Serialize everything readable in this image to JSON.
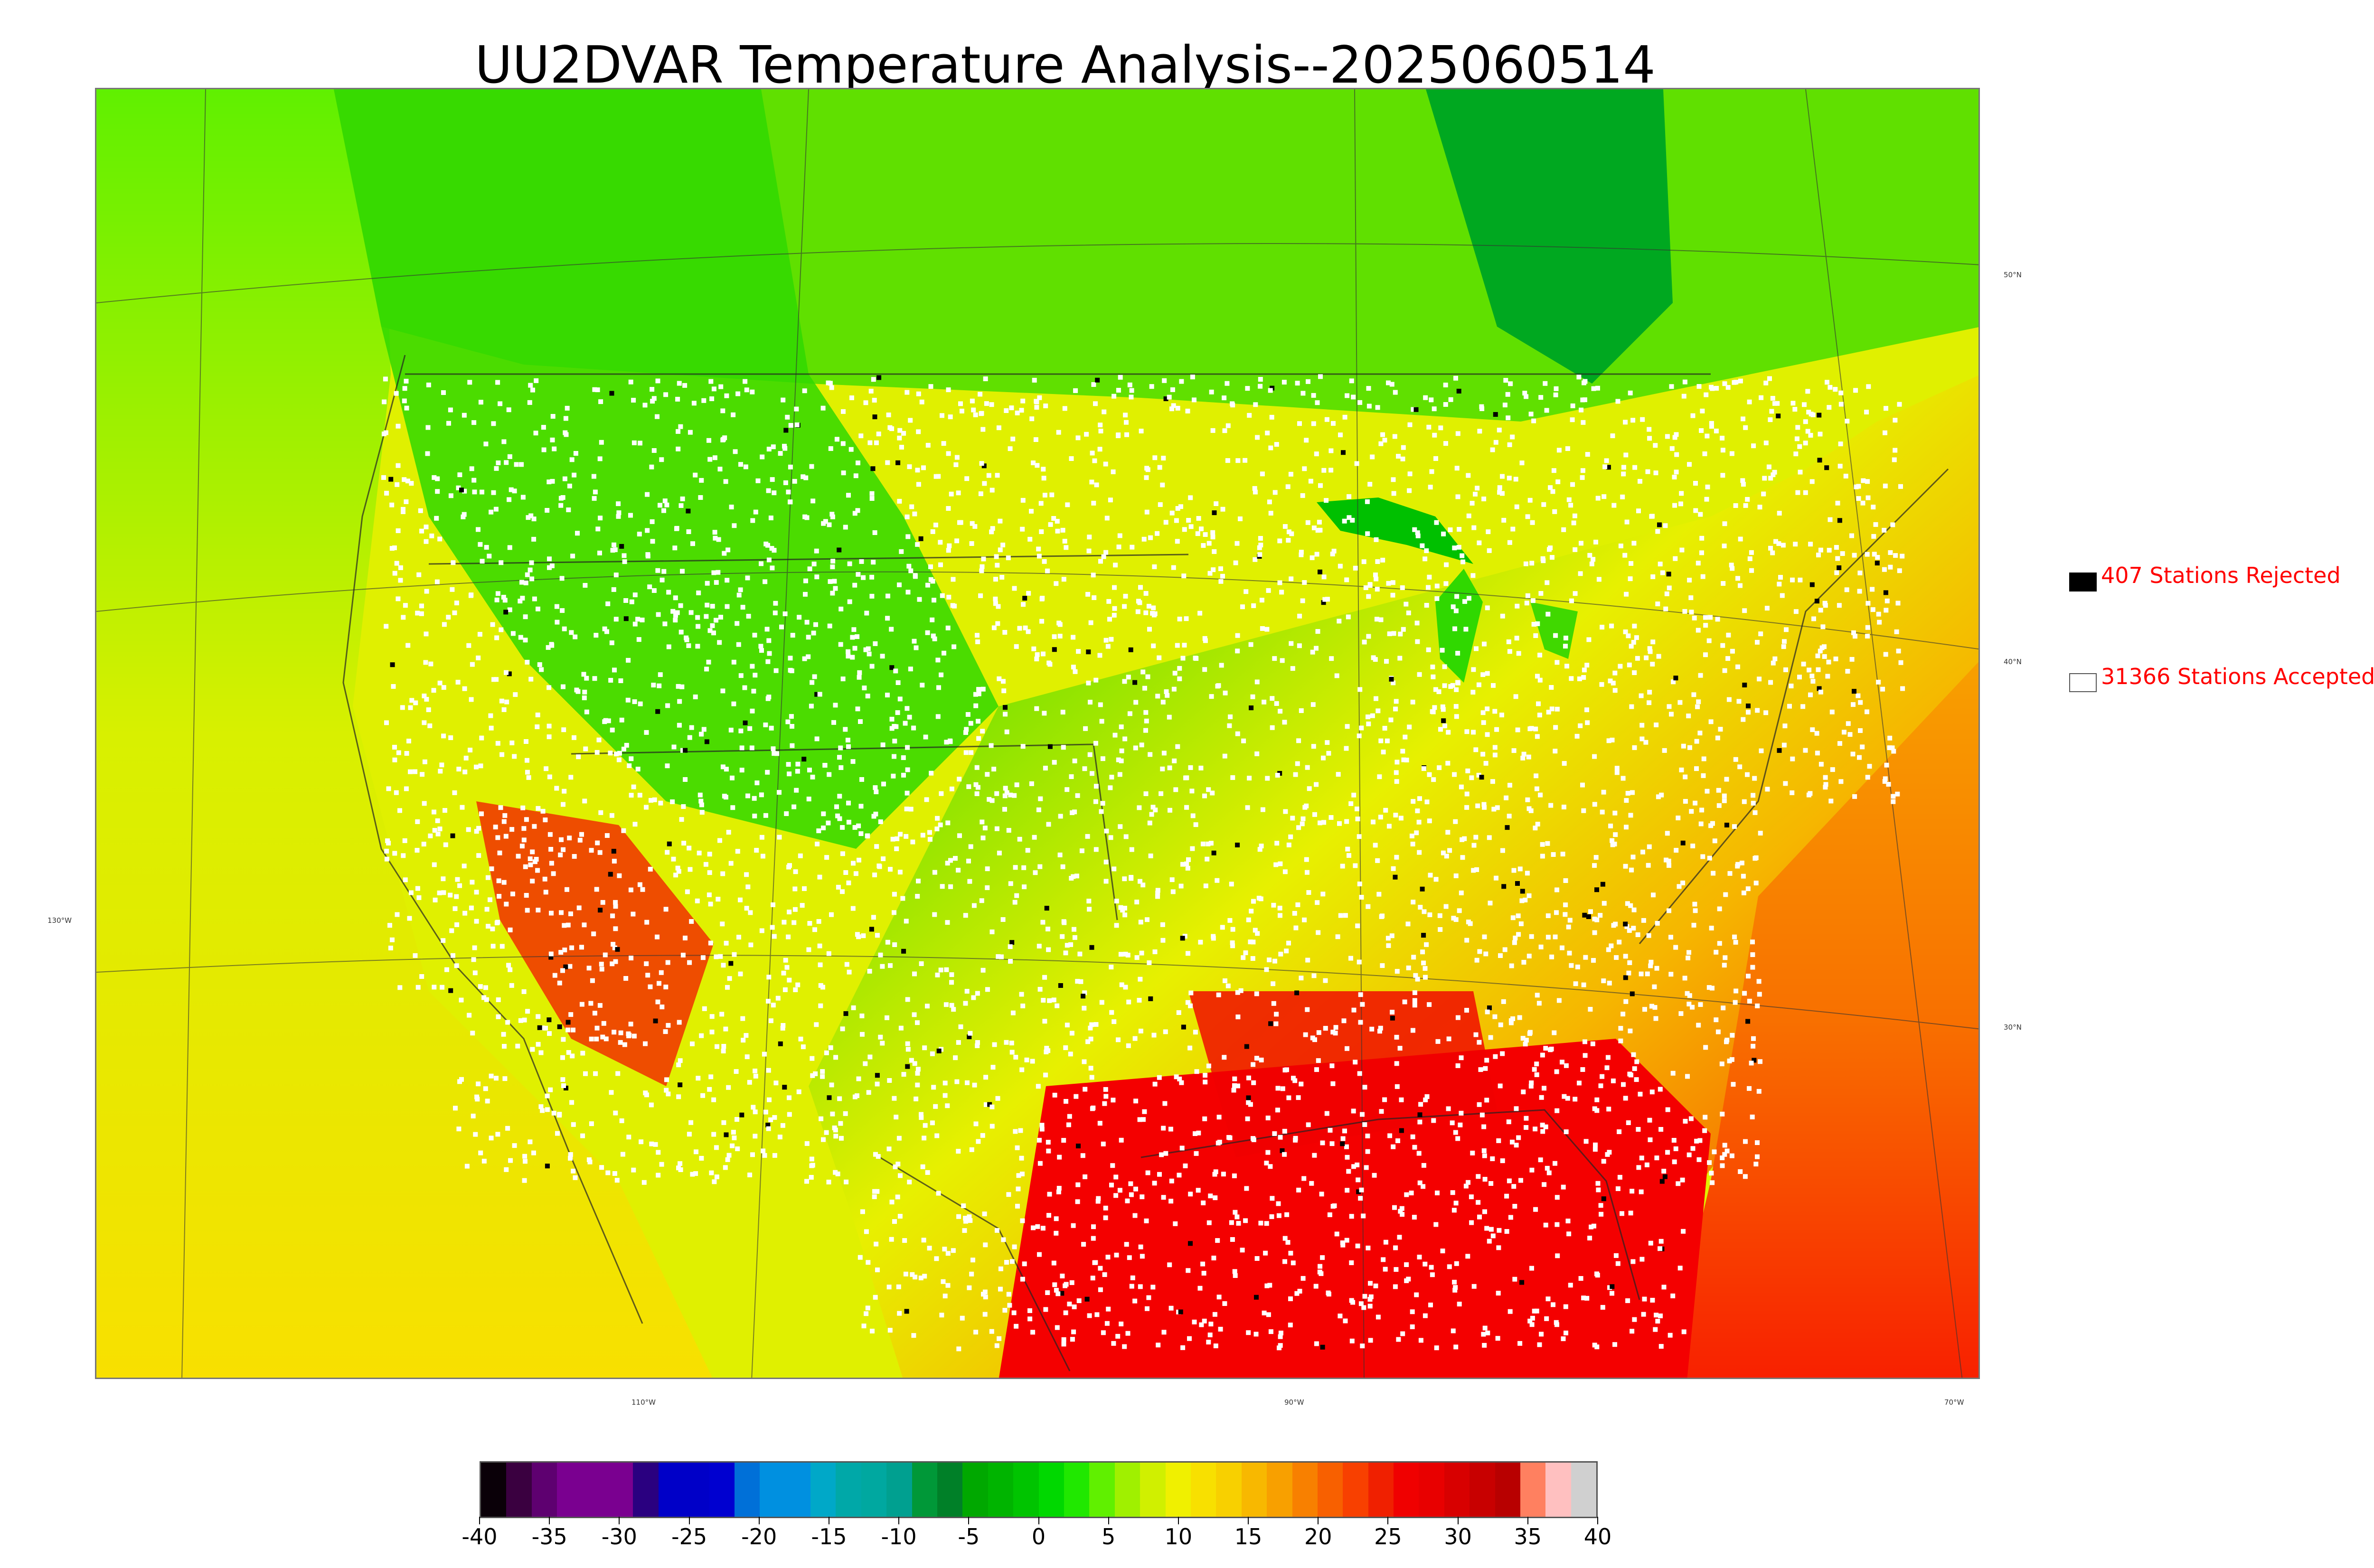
{
  "title": "UU2DVAR Temperature Analysis--2025060514",
  "map": {
    "lat_labels": [
      "50°N",
      "40°N",
      "30°N"
    ],
    "lon_labels": [
      "130°W",
      "110°W",
      "90°W",
      "70°W"
    ]
  },
  "legend": {
    "rejected": {
      "label": "407 Stations Rejected",
      "swatch_color": "#000000"
    },
    "accepted": {
      "label": "31366 Stations Accepted",
      "swatch_color": "#ffffff"
    }
  },
  "colorbar": {
    "ticks": [
      "-40",
      "-35",
      "-30",
      "-25",
      "-20",
      "-15",
      "-10",
      "-5",
      "0",
      "5",
      "10",
      "15",
      "20",
      "25",
      "30",
      "35",
      "40"
    ],
    "colors": [
      "#0a0008",
      "#3a0040",
      "#5e0070",
      "#7a0090",
      "#7a0090",
      "#7a0090",
      "#2a0080",
      "#0000c8",
      "#0000c8",
      "#0000d0",
      "#0070d8",
      "#0090e0",
      "#0090e0",
      "#00a8c8",
      "#00a8a8",
      "#00a8a0",
      "#00a090",
      "#009838",
      "#008028",
      "#00a800",
      "#00b400",
      "#00c400",
      "#00d800",
      "#20e800",
      "#60f000",
      "#a0f000",
      "#d0f000",
      "#f0f000",
      "#f8e000",
      "#f8d000",
      "#f8b800",
      "#f8a000",
      "#f88000",
      "#f86000",
      "#f84000",
      "#f02000",
      "#f00000",
      "#e80000",
      "#d80000",
      "#c80000",
      "#b80000",
      "#ff8060",
      "#ffc0c0",
      "#d0d0d0"
    ]
  }
}
